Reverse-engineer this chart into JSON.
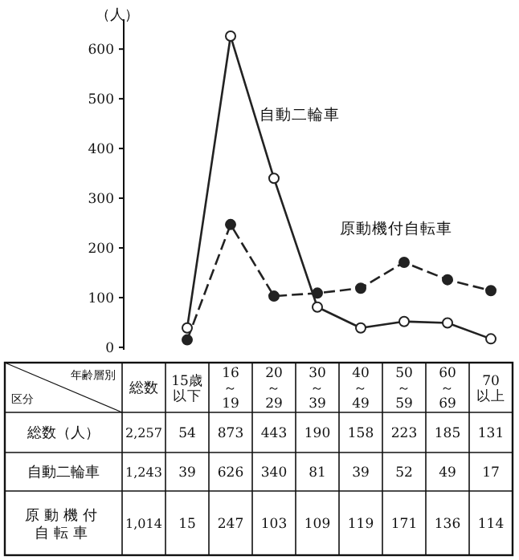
{
  "chart_data": {
    "type": "line",
    "ylabel": "（人）",
    "categories": [
      "15歳以下",
      "16～19",
      "20～29",
      "30～39",
      "40～49",
      "50～59",
      "60～69",
      "70以上"
    ],
    "series": [
      {
        "name": "自動二輪車",
        "color": "#222222",
        "marker": "circle",
        "line_style": "solid",
        "values": [
          39,
          626,
          340,
          81,
          39,
          52,
          49,
          17
        ]
      },
      {
        "name": "原動機付自転車",
        "color": "#222222",
        "marker": "circle",
        "line_style": "dashed",
        "values": [
          15,
          247,
          103,
          109,
          119,
          171,
          136,
          114
        ]
      }
    ],
    "ylim": [
      -5,
      660
    ],
    "yticks": [
      0,
      100,
      200,
      300,
      400,
      500,
      600
    ],
    "grid": false,
    "legend": false,
    "data_labels": true,
    "totals": [
      "54",
      "873",
      "443",
      "190",
      "158",
      "223",
      "185",
      "131"
    ],
    "annotations": [
      "年齢層別",
      "区分",
      "総数",
      "総数（人）",
      "2,257",
      "1,243",
      "1,014"
    ]
  }
}
